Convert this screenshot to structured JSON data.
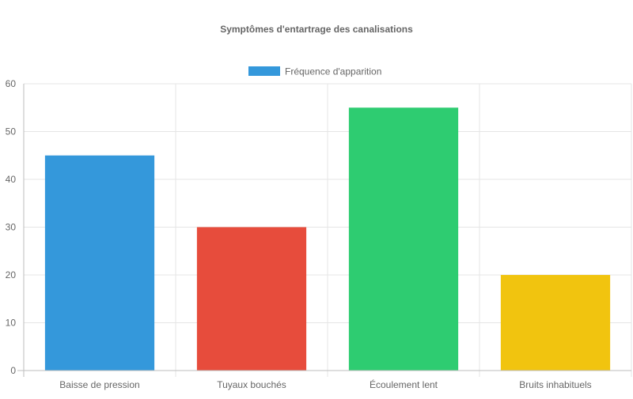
{
  "chart_data": {
    "type": "bar",
    "title": "Symptômes d'entartrage des canalisations",
    "xlabel": "",
    "ylabel": "",
    "categories": [
      "Baisse de pression",
      "Tuyaux bouchés",
      "Écoulement lent",
      "Bruits inhabituels"
    ],
    "series": [
      {
        "name": "Fréquence d'apparition",
        "values": [
          45,
          30,
          55,
          20
        ],
        "colors": [
          "#3498db",
          "#e74c3c",
          "#2ecc71",
          "#f1c40f"
        ],
        "legend_color": "#3498db"
      }
    ],
    "ylim": [
      0,
      60
    ],
    "yticks": [
      0,
      10,
      20,
      30,
      40,
      50,
      60
    ],
    "grid": true,
    "legend_position": "top"
  }
}
